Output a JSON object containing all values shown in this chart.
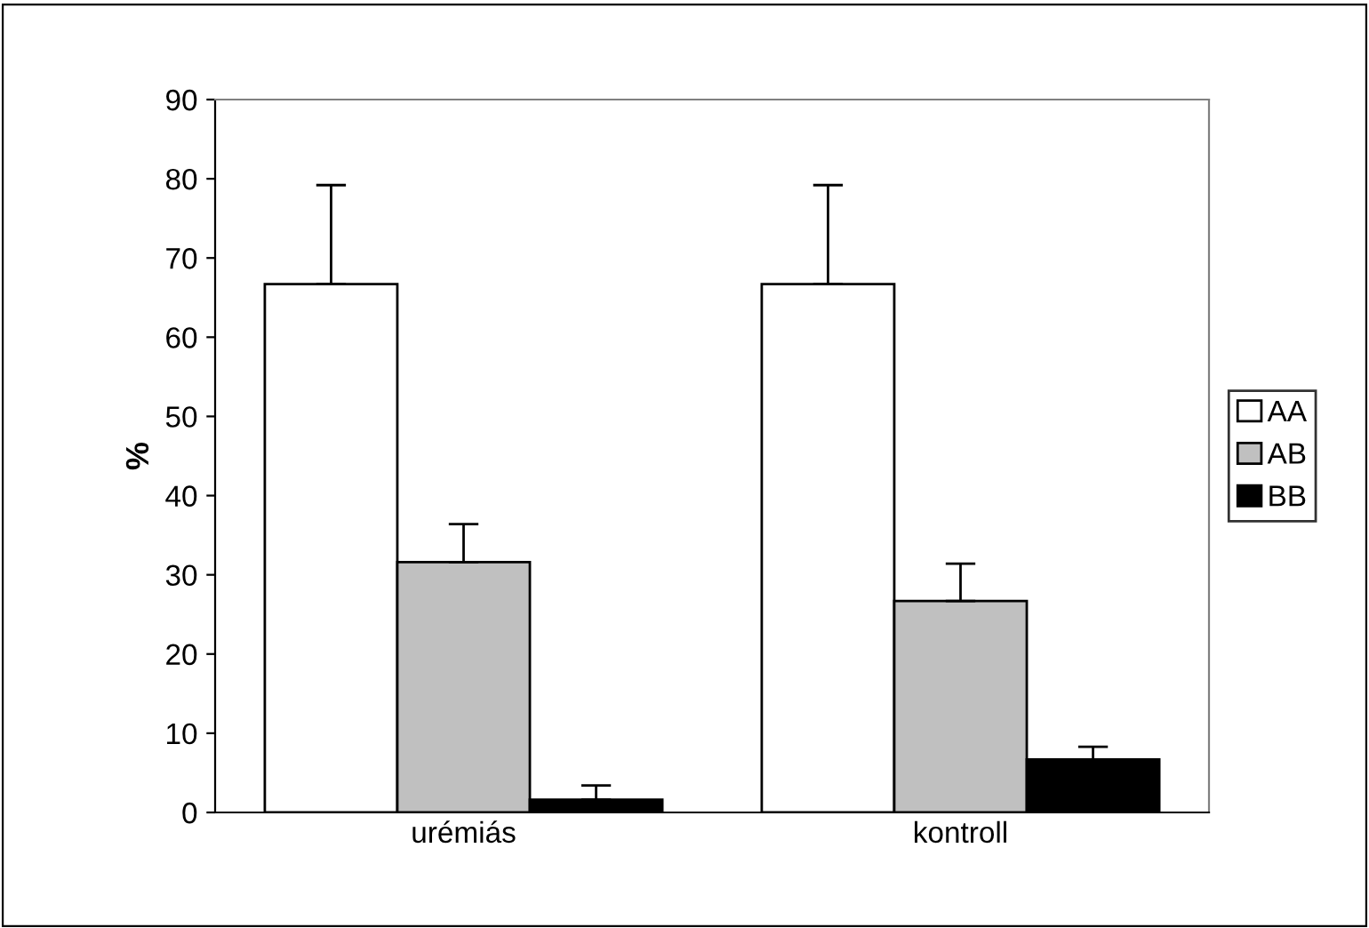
{
  "chart_data": {
    "type": "bar",
    "ylabel": "%",
    "categories": [
      "urémiás",
      "kontroll"
    ],
    "series": [
      {
        "name": "AA",
        "color": "#ffffff",
        "values": [
          66.7,
          66.7
        ],
        "errors": [
          [
            66.7,
            79.2
          ],
          [
            66.7,
            79.2
          ]
        ]
      },
      {
        "name": "AB",
        "color": "#c0c0c0",
        "values": [
          31.6,
          26.7
        ],
        "errors": [
          [
            31.6,
            36.4
          ],
          [
            26.7,
            31.4
          ]
        ]
      },
      {
        "name": "BB",
        "color": "#000000",
        "values": [
          1.6,
          6.7
        ],
        "errors": [
          [
            1.6,
            3.4
          ],
          [
            6.7,
            8.3
          ]
        ]
      }
    ],
    "ylim": [
      0,
      90
    ],
    "yticks": [
      0,
      10,
      20,
      30,
      40,
      50,
      60,
      70,
      80,
      90
    ],
    "grid": false,
    "legend": "right"
  }
}
